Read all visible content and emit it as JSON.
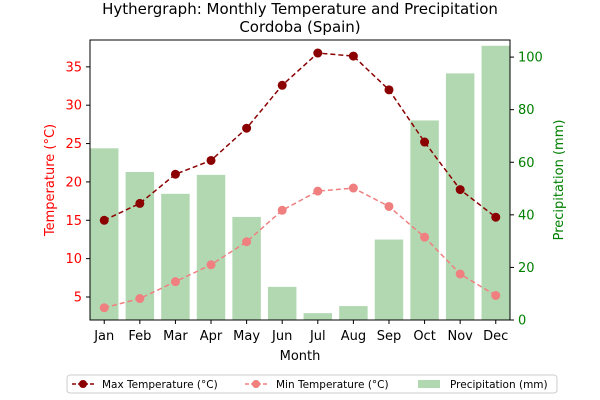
{
  "chart_data": {
    "type": "bar+line",
    "title": "Hythergraph: Monthly Temperature and Precipitation",
    "subtitle": "Cordoba (Spain)",
    "xlabel": "Month",
    "ylabel_left": "Temperature (°C)",
    "ylabel_right": "Precipitation (mm)",
    "categories": [
      "Jan",
      "Feb",
      "Mar",
      "Apr",
      "May",
      "Jun",
      "Jul",
      "Aug",
      "Sep",
      "Oct",
      "Nov",
      "Dec"
    ],
    "ylim_left": [
      2,
      38.5
    ],
    "yticks_left": [
      5,
      10,
      15,
      20,
      25,
      30,
      35
    ],
    "ylim_right": [
      0,
      106.5
    ],
    "yticks_right": [
      0,
      20,
      40,
      60,
      80,
      100
    ],
    "grid": false,
    "legend_position": "bottom",
    "series": [
      {
        "name": "Max Temperature (°C)",
        "kind": "line",
        "axis": "left",
        "color": "#8b0000",
        "values": [
          15.0,
          17.2,
          21.0,
          22.8,
          27.0,
          32.6,
          36.8,
          36.4,
          32.0,
          25.2,
          19.0,
          15.4
        ]
      },
      {
        "name": "Min Temperature (°C)",
        "kind": "line",
        "axis": "left",
        "color": "#f08080",
        "values": [
          3.6,
          4.8,
          7.0,
          9.2,
          12.2,
          16.3,
          18.8,
          19.2,
          16.8,
          12.8,
          8.0,
          5.2
        ]
      },
      {
        "name": "Precipitation (mm)",
        "kind": "bar",
        "axis": "right",
        "color": "#b2d8b2",
        "values": [
          65.3,
          56.3,
          48.0,
          55.2,
          39.2,
          12.6,
          2.6,
          5.3,
          30.6,
          75.9,
          93.8,
          104.3
        ]
      }
    ]
  }
}
